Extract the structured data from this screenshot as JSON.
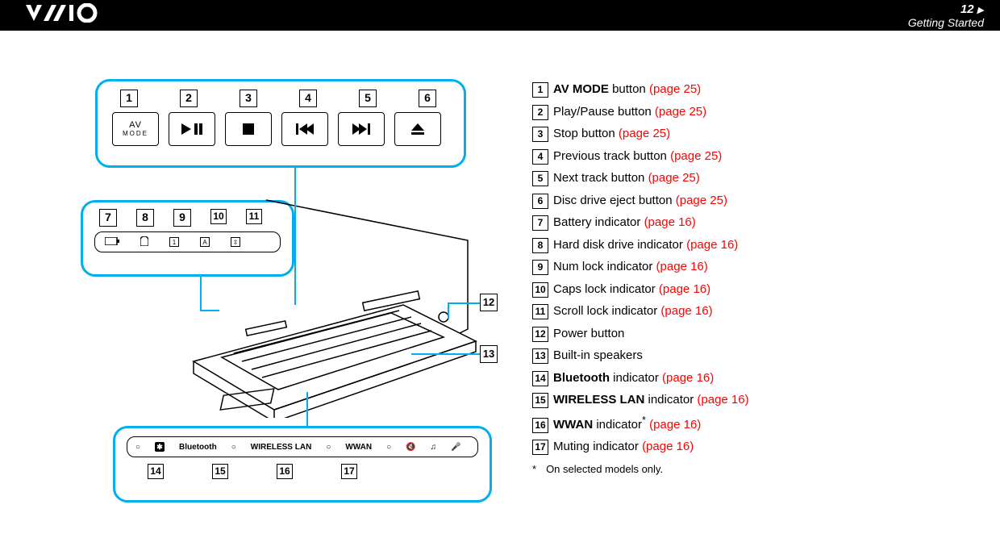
{
  "header": {
    "logo": "VAIO",
    "page_number": "12",
    "section": "Getting Started"
  },
  "colors": {
    "callout_border": "#00aeef",
    "link": "#ff0000",
    "header_bg": "#000000"
  },
  "callouts": {
    "top": {
      "numbers": [
        "1",
        "2",
        "3",
        "4",
        "5",
        "6"
      ],
      "buttons": [
        {
          "type": "av",
          "line1": "AV",
          "line2": "MODE"
        },
        {
          "type": "playpause",
          "glyph": "▶❙❙"
        },
        {
          "type": "stop",
          "glyph": "■"
        },
        {
          "type": "prev",
          "glyph": "⏮"
        },
        {
          "type": "next",
          "glyph": "⏭"
        },
        {
          "type": "eject",
          "glyph": "⏏"
        }
      ]
    },
    "mid": {
      "numbers": [
        "7",
        "8",
        "9",
        "10",
        "11"
      ],
      "indicators": [
        "🔋",
        "💾",
        "1",
        "A",
        "⇳"
      ]
    },
    "bot": {
      "labels": [
        "Bluetooth",
        "WIRELESS LAN",
        "WWAN"
      ],
      "extra_icons": [
        "🔇",
        "🎧",
        "🎤"
      ],
      "numbers": [
        "14",
        "15",
        "16",
        "17"
      ]
    },
    "side": {
      "n12": "12",
      "n13": "13"
    }
  },
  "legend": [
    {
      "n": "1",
      "bold": "AV MODE",
      "text": " button ",
      "link": "(page 25)"
    },
    {
      "n": "2",
      "text": "Play/Pause button ",
      "link": "(page 25)"
    },
    {
      "n": "3",
      "text": "Stop button ",
      "link": "(page 25)"
    },
    {
      "n": "4",
      "text": "Previous track button ",
      "link": "(page 25)"
    },
    {
      "n": "5",
      "text": "Next track button ",
      "link": "(page 25)"
    },
    {
      "n": "6",
      "text": "Disc drive eject button ",
      "link": "(page 25)"
    },
    {
      "n": "7",
      "text": "Battery indicator ",
      "link": "(page 16)"
    },
    {
      "n": "8",
      "text": "Hard disk drive indicator ",
      "link": "(page 16)"
    },
    {
      "n": "9",
      "text": "Num lock indicator ",
      "link": "(page 16)"
    },
    {
      "n": "10",
      "text": "Caps lock indicator ",
      "link": "(page 16)"
    },
    {
      "n": "11",
      "text": "Scroll lock indicator ",
      "link": "(page 16)"
    },
    {
      "n": "12",
      "text": "Power button"
    },
    {
      "n": "13",
      "text": "Built-in speakers"
    },
    {
      "n": "14",
      "bold": "Bluetooth",
      "text": " indicator ",
      "link": "(page 16)"
    },
    {
      "n": "15",
      "bold": "WIRELESS LAN",
      "text": " indicator ",
      "link": "(page 16)"
    },
    {
      "n": "16",
      "bold": "WWAN",
      "text": " indicator",
      "sup": "*",
      "link": " (page 16)"
    },
    {
      "n": "17",
      "text": "Muting indicator ",
      "link": "(page 16)"
    }
  ],
  "footnote": {
    "mark": "*",
    "text": "On selected models only."
  }
}
